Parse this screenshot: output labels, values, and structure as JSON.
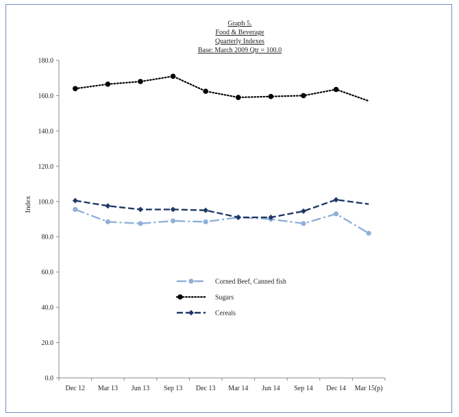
{
  "title_lines": [
    "Graph 5.",
    "Food & Beverage",
    "Quarterly Indexes",
    "Base: March 2009 Qtr  = 100.0"
  ],
  "chart_data": {
    "type": "line",
    "title": "Graph 5. Food & Beverage Quarterly Indexes",
    "subtitle": "Base: March 2009 Qtr  = 100.0",
    "xlabel": "",
    "ylabel": "Index",
    "categories": [
      "Dec 12",
      "Mar 13",
      "Jun 13",
      "Sep 13",
      "Dec 13",
      "Mar 14",
      "Jun 14",
      "Sep 14",
      "Dec 14",
      "Mar 15(p)"
    ],
    "ylim": [
      0,
      180
    ],
    "yticks": [
      "0.0",
      "20.0",
      "40.0",
      "60.0",
      "80.0",
      "100.0",
      "120.0",
      "140.0",
      "160.0",
      "180.0"
    ],
    "grid": false,
    "legend_position": "center-left",
    "series": [
      {
        "name": "Corned Beef, Canned fish",
        "values": [
          95.5,
          88.5,
          87.5,
          89.0,
          88.5,
          91.0,
          90.0,
          87.5,
          93.0,
          82.0
        ],
        "color": "#8fb0d8",
        "dash": "dashdot",
        "marker": "circle"
      },
      {
        "name": "Sugars",
        "values": [
          164.0,
          166.5,
          168.0,
          171.0,
          162.5,
          159.0,
          159.5,
          160.0,
          163.5,
          157.0
        ],
        "color": "#000000",
        "dash": "dotted",
        "marker": "circle"
      },
      {
        "name": "Cereals",
        "values": [
          100.5,
          97.5,
          95.5,
          95.5,
          95.0,
          91.0,
          91.0,
          94.5,
          101.0,
          98.5
        ],
        "color": "#1f3864",
        "dash": "dashed",
        "marker": "diamond"
      }
    ]
  }
}
